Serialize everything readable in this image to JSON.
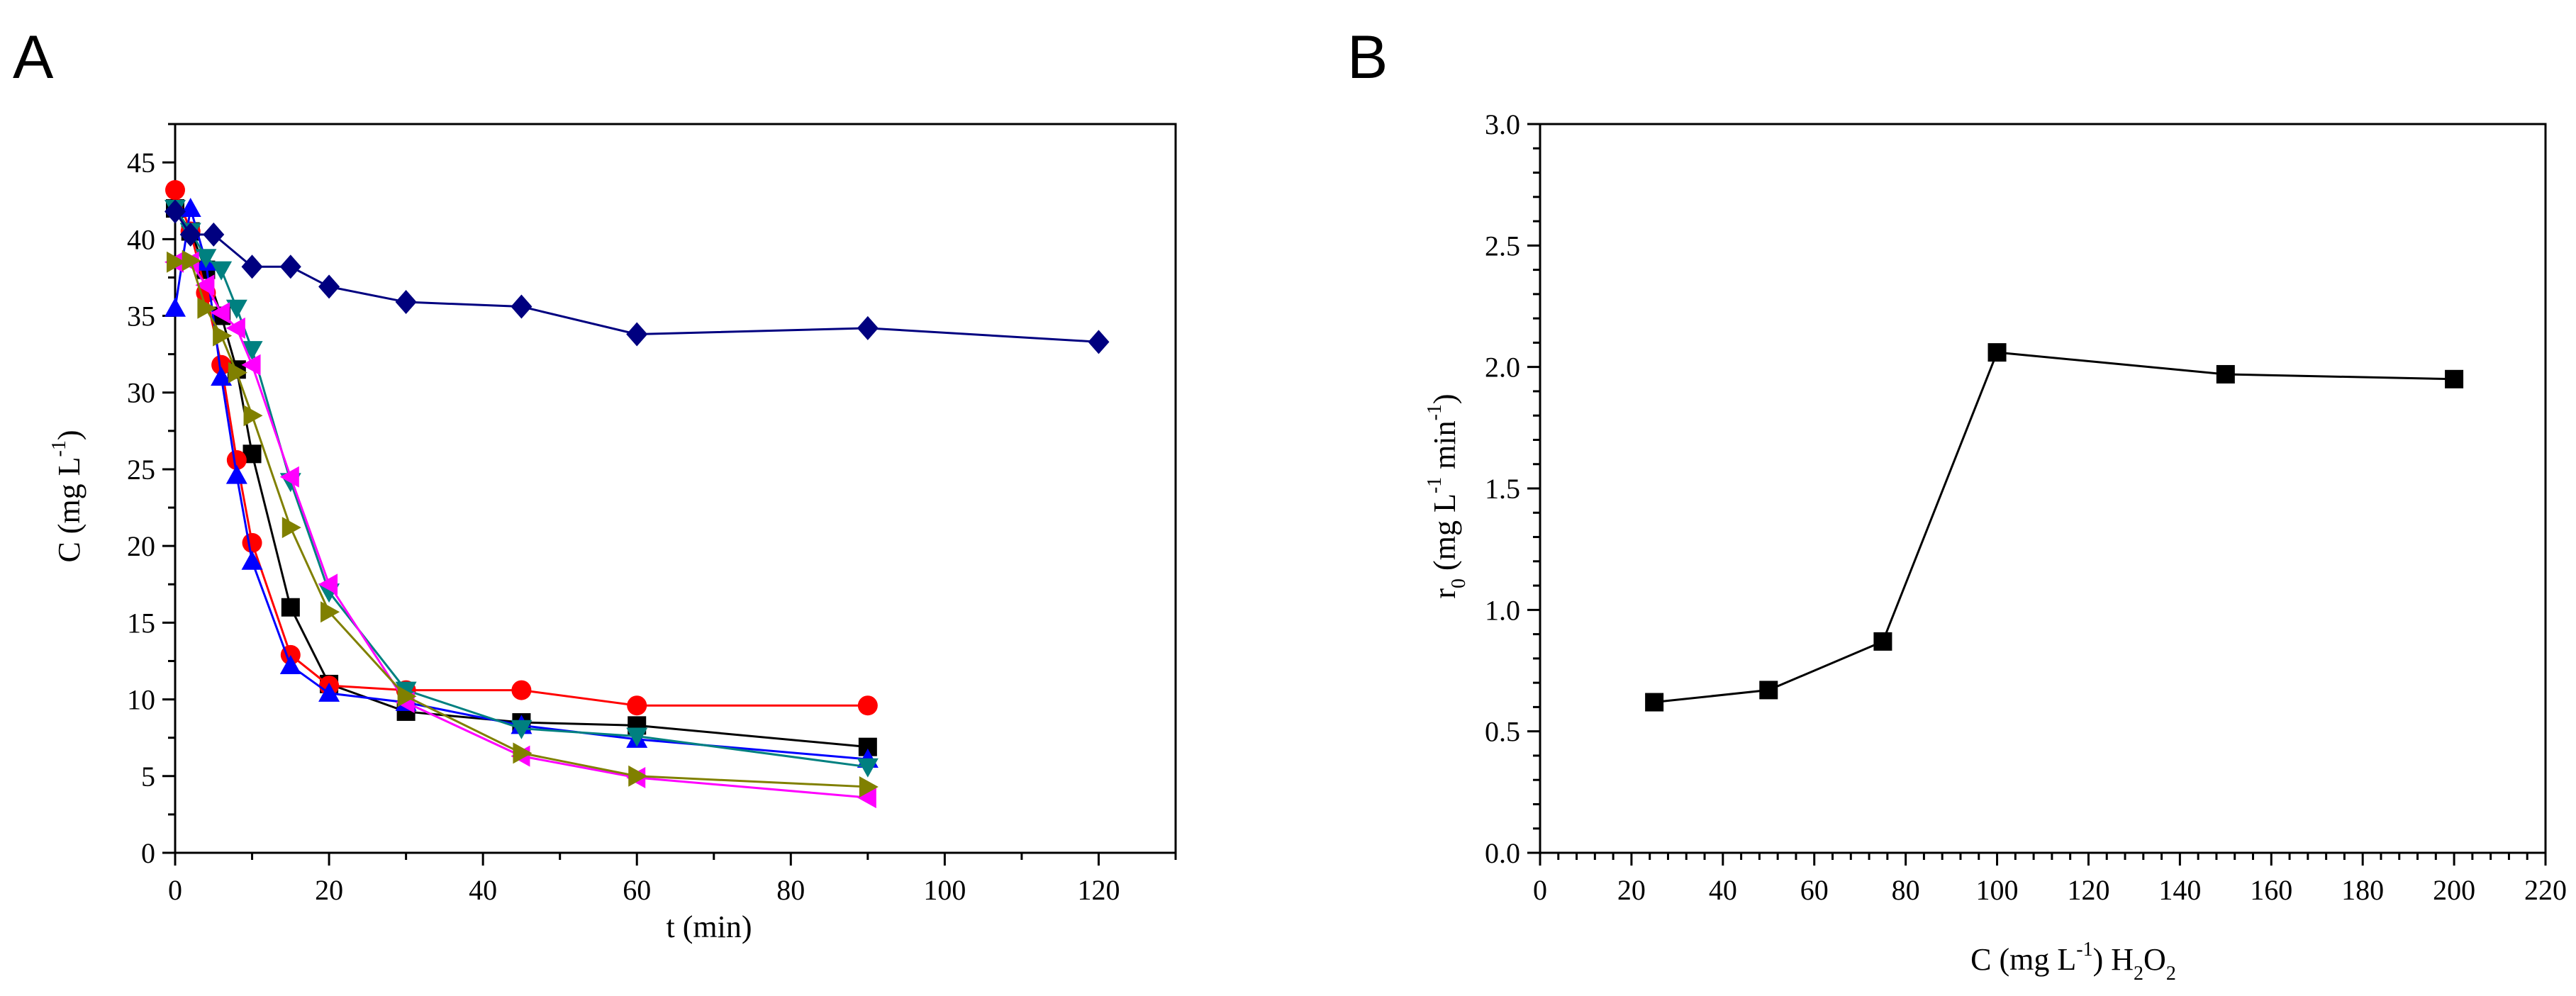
{
  "panels": {
    "a": {
      "letter": "A"
    },
    "b": {
      "letter": "B"
    }
  },
  "chart_data": [
    {
      "type": "line",
      "panel": "A",
      "xlabel": "t (min)",
      "ylabel": {
        "main": "C (mg L",
        "sup": "-1",
        "close": ")"
      },
      "xlim": [
        0,
        130
      ],
      "ylim": [
        0,
        47.5
      ],
      "xticks": [
        0,
        20,
        40,
        60,
        80,
        100,
        120
      ],
      "yticks": [
        0,
        5,
        10,
        15,
        20,
        25,
        30,
        35,
        40,
        45
      ],
      "series": [
        {
          "name": "black squares",
          "color": "#000000",
          "marker": "square",
          "x": [
            0,
            2,
            4,
            6,
            8,
            10,
            15,
            20,
            30,
            45,
            60,
            90
          ],
          "y": [
            42,
            40.5,
            38,
            35,
            31.5,
            26,
            16,
            11,
            9.2,
            8.5,
            8.3,
            6.9
          ]
        },
        {
          "name": "red circles",
          "color": "#ff0000",
          "marker": "circle",
          "x": [
            0,
            2,
            4,
            6,
            8,
            10,
            15,
            20,
            30,
            45,
            60,
            90
          ],
          "y": [
            43.2,
            40.5,
            36.5,
            31.8,
            25.6,
            20.2,
            12.9,
            10.9,
            10.6,
            10.6,
            9.6,
            9.6
          ]
        },
        {
          "name": "blue triangles",
          "color": "#0000ff",
          "marker": "triangle-up",
          "x": [
            0,
            2,
            4,
            6,
            8,
            10,
            15,
            20,
            30,
            45,
            60,
            90
          ],
          "y": [
            35.5,
            42,
            38.5,
            31,
            24.6,
            19,
            12.2,
            10.4,
            9.8,
            8.3,
            7.4,
            6.1
          ]
        },
        {
          "name": "teal triangles",
          "color": "#008080",
          "marker": "triangle-down",
          "x": [
            0,
            2,
            4,
            6,
            8,
            10,
            15,
            20,
            30,
            45,
            60,
            90
          ],
          "y": [
            42,
            40.5,
            38.8,
            38,
            35.5,
            32.8,
            24.2,
            17,
            10.6,
            8.1,
            7.6,
            5.6
          ]
        },
        {
          "name": "magenta triangles",
          "color": "#ff00ff",
          "marker": "triangle-left",
          "x": [
            0,
            2,
            4,
            6,
            8,
            10,
            15,
            20,
            30,
            45,
            60,
            90
          ],
          "y": [
            38.5,
            38.5,
            37,
            35.2,
            34.2,
            31.8,
            24.5,
            17.5,
            9.8,
            6.3,
            4.9,
            3.6
          ]
        },
        {
          "name": "olive triangles",
          "color": "#808000",
          "marker": "triangle-right",
          "x": [
            0,
            2,
            4,
            6,
            8,
            10,
            15,
            20,
            30,
            45,
            60,
            90
          ],
          "y": [
            38.5,
            38.6,
            35.5,
            33.7,
            31.3,
            28.5,
            21.2,
            15.7,
            10.2,
            6.5,
            5,
            4.3
          ]
        },
        {
          "name": "navy diamonds",
          "color": "#000080",
          "marker": "diamond",
          "x": [
            0,
            2,
            5,
            10,
            15,
            20,
            30,
            45,
            60,
            90,
            120
          ],
          "y": [
            41.8,
            40.3,
            40.3,
            38.2,
            38.2,
            36.9,
            35.9,
            35.6,
            33.8,
            34.2,
            33.3
          ]
        }
      ]
    },
    {
      "type": "line",
      "panel": "B",
      "xlabel": {
        "pre": "C (mg L",
        "sup": "-1",
        "mid": ") H",
        "sub1": "2",
        "o": "O",
        "sub2": "2"
      },
      "ylabel": {
        "r": "r",
        "sub": "0",
        "a": " (mg L",
        "sup1": "-1",
        "b": " min",
        "sup2": "-1",
        "c": ")"
      },
      "xlim": [
        0,
        220
      ],
      "ylim": [
        0,
        3.0
      ],
      "xticks": [
        0,
        20,
        40,
        60,
        80,
        100,
        120,
        140,
        160,
        180,
        200,
        220
      ],
      "yticks": [
        "0.0",
        "0.5",
        "1.0",
        "1.5",
        "2.0",
        "2.5",
        "3.0"
      ],
      "series": [
        {
          "name": "initial rate",
          "color": "#000000",
          "marker": "square",
          "x": [
            25,
            50,
            75,
            100,
            150,
            200
          ],
          "y": [
            0.62,
            0.67,
            0.87,
            2.06,
            1.97,
            1.95
          ]
        }
      ]
    }
  ]
}
